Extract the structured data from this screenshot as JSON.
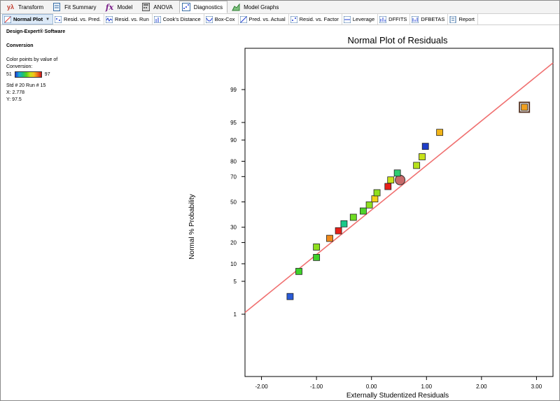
{
  "toolbar": {
    "tabs": [
      {
        "label": "Transform",
        "icon": "transform-icon"
      },
      {
        "label": "Fit Summary",
        "icon": "fit-summary-icon"
      },
      {
        "label": "Model",
        "icon": "model-icon"
      },
      {
        "label": "ANOVA",
        "icon": "anova-icon"
      },
      {
        "label": "Diagnostics",
        "icon": "diagnostics-icon"
      },
      {
        "label": "Model Graphs",
        "icon": "model-graphs-icon"
      }
    ],
    "transform_symbol": "yλ",
    "model_symbol": "fx",
    "active_tab": "Diagnostics"
  },
  "subtabs": [
    {
      "label": "Normal Plot",
      "active": true
    },
    {
      "label": "Resid. vs. Pred."
    },
    {
      "label": "Resid. vs. Run"
    },
    {
      "label": "Cook's Distance"
    },
    {
      "label": "Box-Cox"
    },
    {
      "label": "Pred. vs. Actual"
    },
    {
      "label": "Resid. vs. Factor"
    },
    {
      "label": "Leverage"
    },
    {
      "label": "DFFITS"
    },
    {
      "label": "DFBETAS"
    },
    {
      "label": "Report"
    }
  ],
  "info": {
    "software": "Design-Expert® Software",
    "response": "Conversion",
    "color_text_1": "Color points by value of",
    "color_text_2": "Conversion:",
    "color_min": "51",
    "color_max": "97",
    "selected": "Std # 20 Run # 15",
    "x": "X: 2.778",
    "y": "Y: 97.5"
  },
  "chart_data": {
    "type": "scatter",
    "title": "Normal Plot of Residuals",
    "xlabel": "Externally Studentized Residuals",
    "ylabel": "Normal % Probability",
    "xlim": [
      -2.3,
      3.3
    ],
    "x_ticks": [
      "-2.00",
      "-1.00",
      "0.00",
      "1.00",
      "2.00",
      "3.00"
    ],
    "y_ticks": [
      "1",
      "5",
      "10",
      "20",
      "30",
      "50",
      "70",
      "80",
      "90",
      "95",
      "99"
    ],
    "y_scale": "normal-probability",
    "reference_line": {
      "x": [
        -2.3,
        3.3
      ],
      "y": [
        1.1,
        99.8
      ],
      "color": "#f07070"
    },
    "points": [
      {
        "x": -1.48,
        "y": 2.5,
        "color": "#2a5bd7"
      },
      {
        "x": -1.32,
        "y": 7.5,
        "color": "#3fd22a"
      },
      {
        "x": -1.0,
        "y": 12.5,
        "color": "#3fd22a"
      },
      {
        "x": -1.0,
        "y": 17.5,
        "color": "#8fe01f"
      },
      {
        "x": -0.76,
        "y": 22.5,
        "color": "#f08a1b"
      },
      {
        "x": -0.6,
        "y": 27.5,
        "color": "#e8201a"
      },
      {
        "x": -0.5,
        "y": 32.5,
        "color": "#19c98a"
      },
      {
        "x": -0.33,
        "y": 37.5,
        "color": "#6fdc22"
      },
      {
        "x": -0.15,
        "y": 42.5,
        "color": "#4fd42a"
      },
      {
        "x": -0.04,
        "y": 47.5,
        "color": "#8fe01f"
      },
      {
        "x": 0.06,
        "y": 52.5,
        "color": "#f3d21a"
      },
      {
        "x": 0.1,
        "y": 57.5,
        "color": "#8fe01f"
      },
      {
        "x": 0.3,
        "y": 62.5,
        "color": "#e8201a"
      },
      {
        "x": 0.35,
        "y": 67.5,
        "color": "#c8e31a"
      },
      {
        "x": 0.52,
        "y": 67.5,
        "color": "#c86a6a",
        "shape": "circle"
      },
      {
        "x": 0.47,
        "y": 72.5,
        "color": "#2ecc71"
      },
      {
        "x": 0.82,
        "y": 77.5,
        "color": "#b6e21c"
      },
      {
        "x": 0.92,
        "y": 82.5,
        "color": "#c8e31a"
      },
      {
        "x": 0.98,
        "y": 87.5,
        "color": "#1f3ec9"
      },
      {
        "x": 1.24,
        "y": 92.5,
        "color": "#f2b419"
      },
      {
        "x": 2.78,
        "y": 97.5,
        "color": "#f0a020",
        "selected": true
      }
    ]
  }
}
